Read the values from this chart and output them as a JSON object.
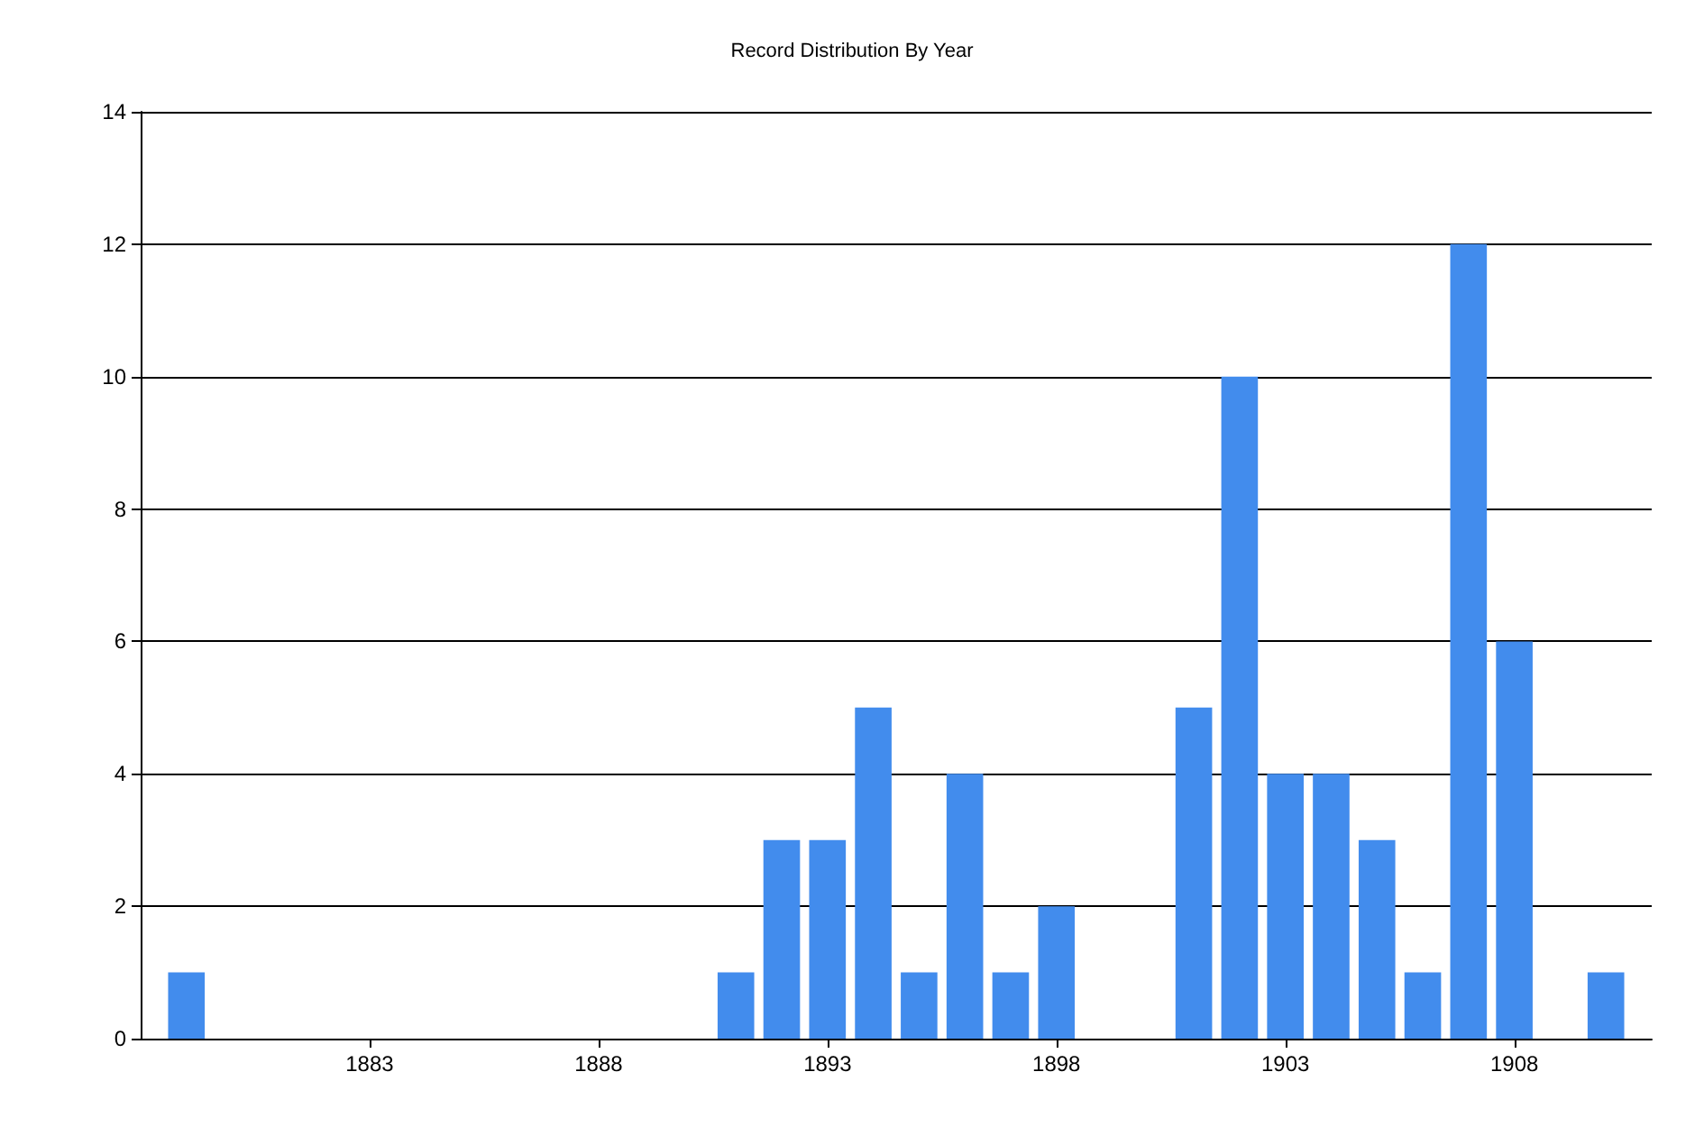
{
  "chart_data": {
    "type": "bar",
    "title": "Record Distribution By Year",
    "x": [
      1879,
      1891,
      1892,
      1893,
      1894,
      1895,
      1896,
      1897,
      1898,
      1901,
      1902,
      1903,
      1904,
      1905,
      1906,
      1907,
      1908,
      1910
    ],
    "values": [
      1,
      1,
      3,
      3,
      5,
      1,
      4,
      1,
      2,
      5,
      10,
      4,
      4,
      3,
      1,
      12,
      6,
      1
    ],
    "color": "#428ced",
    "xlim": [
      1878,
      1911
    ],
    "xticks": [
      1883,
      1888,
      1893,
      1898,
      1903,
      1908
    ],
    "ylim": [
      0,
      14
    ],
    "yticks": [
      0,
      2,
      4,
      6,
      8,
      10,
      12,
      14
    ],
    "grid": "y"
  }
}
